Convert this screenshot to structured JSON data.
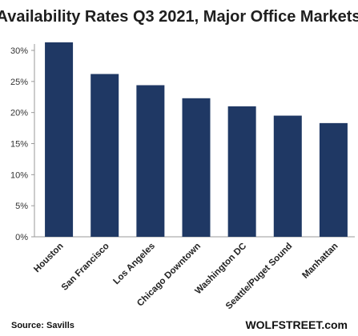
{
  "chart_data": {
    "type": "bar",
    "title": "Availability  Rates Q3 2021, Major Office Markets",
    "categories": [
      "Houston",
      "San Francisco",
      "Los Angeles",
      "Chicago Downtown",
      "Washington DC",
      "Seattle/Puget Sound",
      "Manhattan"
    ],
    "values": [
      31.3,
      26.2,
      24.4,
      22.3,
      21.0,
      19.5,
      18.3
    ],
    "unit": "%",
    "ylim": [
      0,
      30
    ],
    "yticks": [
      "0%",
      "5%",
      "10%",
      "15%",
      "20%",
      "25%",
      "30%"
    ],
    "ytick_values": [
      0,
      5,
      10,
      15,
      20,
      25,
      30
    ],
    "bar_color": "#1f3864",
    "grid": false,
    "legend": "none"
  },
  "footer": {
    "source": "Source: Savills",
    "brand": "WOLFSTREET.com"
  }
}
